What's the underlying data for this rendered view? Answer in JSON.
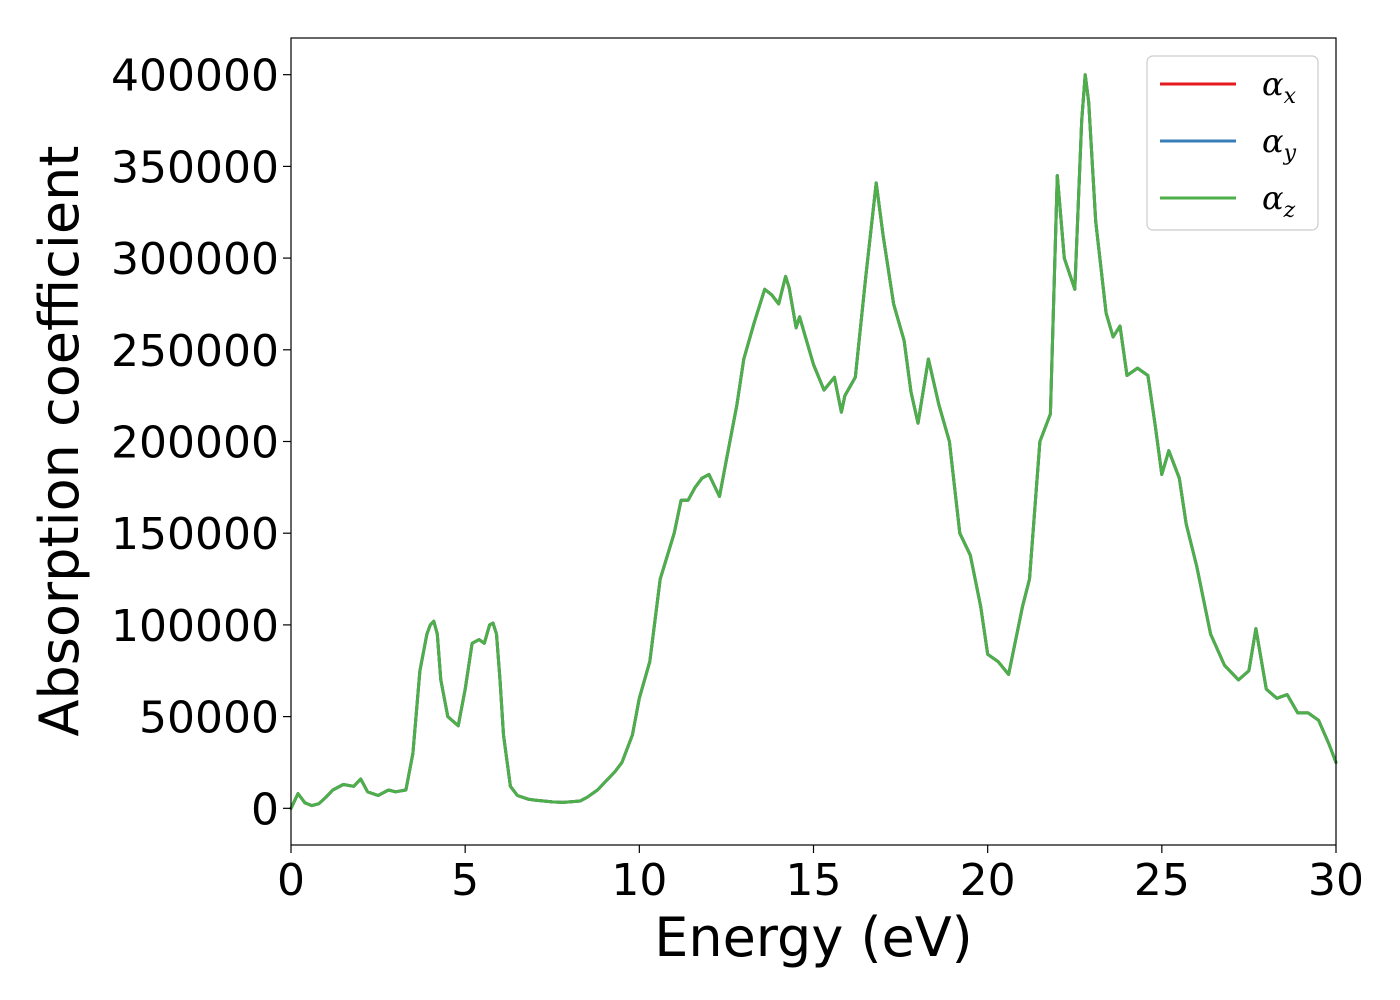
{
  "chart_data": {
    "type": "line",
    "title": "",
    "xlabel": "Energy (eV)",
    "ylabel": "Absorption coefficient",
    "xlim": [
      0,
      30
    ],
    "ylim": [
      -20000,
      420000
    ],
    "xticks": [
      0,
      5,
      10,
      15,
      20,
      25,
      30
    ],
    "yticks": [
      0,
      50000,
      100000,
      150000,
      200000,
      250000,
      300000,
      350000,
      400000
    ],
    "grid": false,
    "legend": {
      "placement": "top-right",
      "entries": [
        {
          "base": "α",
          "sub": "x",
          "color": "#e41a1c"
        },
        {
          "base": "α",
          "sub": "y",
          "color": "#377eb8"
        },
        {
          "base": "α",
          "sub": "z",
          "color": "#4daf4a"
        }
      ]
    },
    "x": [
      0,
      0.2,
      0.4,
      0.6,
      0.8,
      1.0,
      1.2,
      1.5,
      1.8,
      2.0,
      2.2,
      2.5,
      2.8,
      3.0,
      3.3,
      3.5,
      3.7,
      3.9,
      4.0,
      4.1,
      4.2,
      4.3,
      4.5,
      4.8,
      5.0,
      5.2,
      5.4,
      5.55,
      5.7,
      5.8,
      5.9,
      6.0,
      6.1,
      6.3,
      6.5,
      6.8,
      7.0,
      7.5,
      7.8,
      8.0,
      8.3,
      8.5,
      8.8,
      9.0,
      9.3,
      9.5,
      9.8,
      10.0,
      10.3,
      10.6,
      11.0,
      11.2,
      11.4,
      11.6,
      11.8,
      12.0,
      12.3,
      12.5,
      12.8,
      13.0,
      13.3,
      13.6,
      13.8,
      14.0,
      14.2,
      14.3,
      14.5,
      14.6,
      14.8,
      15.0,
      15.3,
      15.6,
      15.8,
      15.9,
      16.2,
      16.5,
      16.8,
      17.0,
      17.3,
      17.6,
      17.8,
      18.0,
      18.3,
      18.6,
      18.9,
      19.2,
      19.5,
      19.8,
      20.0,
      20.3,
      20.6,
      21.0,
      21.2,
      21.5,
      21.8,
      22.0,
      22.2,
      22.5,
      22.7,
      22.8,
      22.9,
      23.1,
      23.4,
      23.6,
      23.8,
      24.0,
      24.3,
      24.6,
      24.8,
      25.0,
      25.2,
      25.5,
      25.7,
      26.0,
      26.4,
      26.8,
      27.2,
      27.5,
      27.7,
      28.0,
      28.3,
      28.6,
      28.9,
      29.2,
      29.5,
      29.8,
      30.0
    ],
    "series": [
      {
        "name": "α_x",
        "color": "#e41a1c",
        "values": [
          0,
          8000,
          3000,
          1500,
          2500,
          6000,
          10000,
          13000,
          12000,
          16000,
          9000,
          7000,
          10000,
          9000,
          10000,
          30000,
          75000,
          95000,
          100000,
          102000,
          95000,
          70000,
          50000,
          45000,
          65000,
          90000,
          92000,
          90000,
          100000,
          101000,
          95000,
          70000,
          40000,
          12000,
          7000,
          5000,
          4500,
          3500,
          3200,
          3500,
          4000,
          6000,
          10000,
          14000,
          20000,
          25000,
          40000,
          60000,
          80000,
          125000,
          150000,
          168000,
          168000,
          175000,
          180000,
          182000,
          170000,
          190000,
          220000,
          245000,
          265000,
          283000,
          280000,
          275000,
          290000,
          284000,
          262000,
          268000,
          255000,
          242000,
          228000,
          235000,
          216000,
          225000,
          235000,
          290000,
          341000,
          312000,
          275000,
          255000,
          227000,
          210000,
          245000,
          220000,
          200000,
          150000,
          138000,
          110000,
          84000,
          80000,
          73000,
          110000,
          125000,
          200000,
          215000,
          345000,
          300000,
          283000,
          375000,
          400000,
          385000,
          320000,
          270000,
          257000,
          263000,
          236000,
          240000,
          236000,
          210000,
          182000,
          195000,
          180000,
          155000,
          132000,
          95000,
          78000,
          70000,
          75000,
          98000,
          65000,
          60000,
          62000,
          52000,
          52000,
          48000,
          35000,
          25000
        ]
      },
      {
        "name": "α_y",
        "color": "#377eb8",
        "values": [
          0,
          8000,
          3000,
          1500,
          2500,
          6000,
          10000,
          13000,
          12000,
          16000,
          9000,
          7000,
          10000,
          9000,
          10000,
          30000,
          75000,
          95000,
          100000,
          102000,
          95000,
          70000,
          50000,
          45000,
          65000,
          90000,
          92000,
          90000,
          100000,
          101000,
          95000,
          70000,
          40000,
          12000,
          7000,
          5000,
          4500,
          3500,
          3200,
          3500,
          4000,
          6000,
          10000,
          14000,
          20000,
          25000,
          40000,
          60000,
          80000,
          125000,
          150000,
          168000,
          168000,
          175000,
          180000,
          182000,
          170000,
          190000,
          220000,
          245000,
          265000,
          283000,
          280000,
          275000,
          290000,
          284000,
          262000,
          268000,
          255000,
          242000,
          228000,
          235000,
          216000,
          225000,
          235000,
          290000,
          341000,
          312000,
          275000,
          255000,
          227000,
          210000,
          245000,
          220000,
          200000,
          150000,
          138000,
          110000,
          84000,
          80000,
          73000,
          110000,
          125000,
          200000,
          215000,
          345000,
          300000,
          283000,
          375000,
          400000,
          385000,
          320000,
          270000,
          257000,
          263000,
          236000,
          240000,
          236000,
          210000,
          182000,
          195000,
          180000,
          155000,
          132000,
          95000,
          78000,
          70000,
          75000,
          98000,
          65000,
          60000,
          62000,
          52000,
          52000,
          48000,
          35000,
          25000
        ]
      },
      {
        "name": "α_z",
        "color": "#4daf4a",
        "values": [
          0,
          8000,
          3000,
          1500,
          2500,
          6000,
          10000,
          13000,
          12000,
          16000,
          9000,
          7000,
          10000,
          9000,
          10000,
          30000,
          75000,
          95000,
          100000,
          102000,
          95000,
          70000,
          50000,
          45000,
          65000,
          90000,
          92000,
          90000,
          100000,
          101000,
          95000,
          70000,
          40000,
          12000,
          7000,
          5000,
          4500,
          3500,
          3200,
          3500,
          4000,
          6000,
          10000,
          14000,
          20000,
          25000,
          40000,
          60000,
          80000,
          125000,
          150000,
          168000,
          168000,
          175000,
          180000,
          182000,
          170000,
          190000,
          220000,
          245000,
          265000,
          283000,
          280000,
          275000,
          290000,
          284000,
          262000,
          268000,
          255000,
          242000,
          228000,
          235000,
          216000,
          225000,
          235000,
          290000,
          341000,
          312000,
          275000,
          255000,
          227000,
          210000,
          245000,
          220000,
          200000,
          150000,
          138000,
          110000,
          84000,
          80000,
          73000,
          110000,
          125000,
          200000,
          215000,
          345000,
          300000,
          283000,
          375000,
          400000,
          385000,
          320000,
          270000,
          257000,
          263000,
          236000,
          240000,
          236000,
          210000,
          182000,
          195000,
          180000,
          155000,
          132000,
          95000,
          78000,
          70000,
          75000,
          98000,
          65000,
          60000,
          62000,
          52000,
          52000,
          48000,
          35000,
          25000
        ]
      }
    ]
  }
}
